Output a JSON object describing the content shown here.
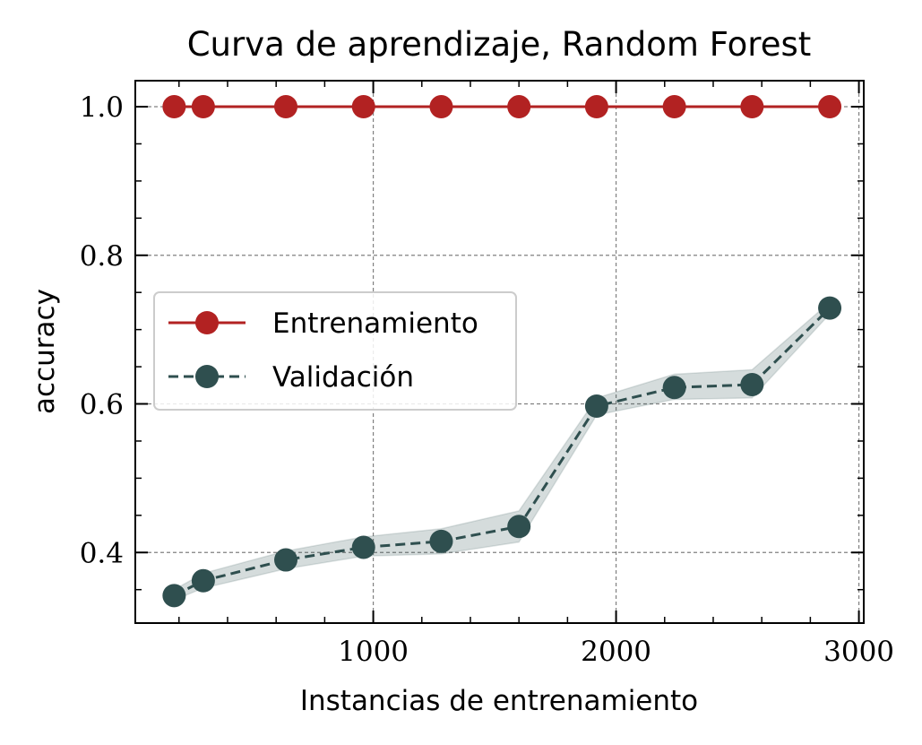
{
  "chart_data": {
    "type": "line",
    "title": "Curva de aprendizaje, Random Forest",
    "xlabel": "Instancias de entrenamiento",
    "ylabel": "accuracy",
    "xlim": [
      20,
      3020
    ],
    "ylim": [
      0.305,
      1.035
    ],
    "xticks": [
      1000,
      2000,
      3000
    ],
    "xtick_labels": [
      "1000",
      "2000",
      "3000"
    ],
    "yticks": [
      0.4,
      0.6,
      0.8,
      1.0
    ],
    "ytick_labels": [
      "0.4",
      "0.6",
      "0.8",
      "1.0"
    ],
    "grid": true,
    "legend_position": "center-left",
    "x": [
      180,
      300,
      640,
      960,
      1280,
      1600,
      1920,
      2240,
      2560,
      2880
    ],
    "series": [
      {
        "name": "Entrenamiento",
        "color": "#b22222",
        "linestyle": "solid",
        "values": [
          1.0,
          1.0,
          1.0,
          1.0,
          1.0,
          1.0,
          1.0,
          1.0,
          1.0,
          1.0
        ]
      },
      {
        "name": "Validación",
        "color": "#2f4f4f",
        "linestyle": "dashed",
        "values": [
          0.342,
          0.362,
          0.39,
          0.407,
          0.415,
          0.435,
          0.597,
          0.622,
          0.626,
          0.729
        ],
        "band_lower": [
          0.336,
          0.352,
          0.378,
          0.395,
          0.398,
          0.414,
          0.585,
          0.606,
          0.608,
          0.721
        ],
        "band_upper": [
          0.35,
          0.372,
          0.402,
          0.421,
          0.432,
          0.456,
          0.608,
          0.64,
          0.646,
          0.737
        ]
      }
    ]
  }
}
